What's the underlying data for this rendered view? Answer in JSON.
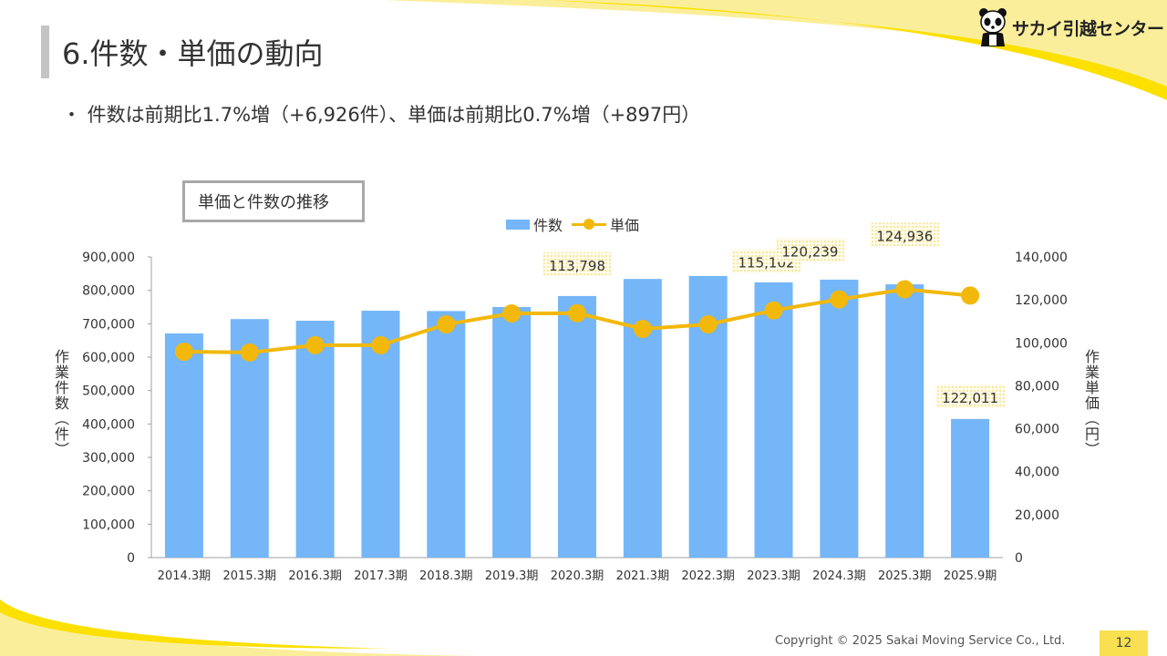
{
  "header": {
    "title": "6.件数・単価の動向",
    "bullet": "・ 件数は前期比1.7%増（+6,926件）、単価は前期比0.7%増（+897円）",
    "logo_text": "サカイ引越センター",
    "logo_icon": "panda-icon"
  },
  "footer": {
    "copyright": "Copyright © 2025 Sakai Moving Service Co., Ltd.",
    "page_number": "12"
  },
  "colors": {
    "bar": "#74b6f8",
    "line": "#f2b80c",
    "accent_yellow": "#f8e050",
    "deco_light_yellow": "#fbee9a",
    "deco_yellow": "#fbe000"
  },
  "chart_data": {
    "type": "bar+line",
    "title": "単価と件数の推移",
    "categories": [
      "2014.3期",
      "2015.3期",
      "2016.3期",
      "2017.3期",
      "2018.3期",
      "2019.3期",
      "2020.3期",
      "2021.3期",
      "2022.3期",
      "2023.3期",
      "2024.3期",
      "2025.3期",
      "2025.9期"
    ],
    "series": [
      {
        "name": "件数",
        "type": "bar",
        "axis": "left",
        "values": [
          671000,
          714000,
          709000,
          739000,
          738000,
          750000,
          783000,
          834000,
          843000,
          824000,
          832000,
          818000,
          415000
        ]
      },
      {
        "name": "単価",
        "type": "line",
        "axis": "right",
        "values": [
          95900,
          95500,
          98900,
          98900,
          108600,
          113700,
          113798,
          106500,
          108600,
          115102,
          120239,
          124936,
          122011
        ],
        "data_labels": [
          null,
          null,
          null,
          null,
          null,
          null,
          "113,798",
          null,
          null,
          "115,102",
          "120,239",
          "124,936",
          "122,011"
        ]
      }
    ],
    "ylabel_left": "作業件数（件）",
    "ylabel_right": "作業単価（円）",
    "ylim_left": [
      0,
      900000
    ],
    "ylim_right": [
      0,
      140000
    ],
    "yticks_left": [
      "0",
      "100,000",
      "200,000",
      "300,000",
      "400,000",
      "500,000",
      "600,000",
      "700,000",
      "800,000",
      "900,000"
    ],
    "yticks_right": [
      "0",
      "20,000",
      "40,000",
      "60,000",
      "80,000",
      "100,000",
      "120,000",
      "140,000"
    ],
    "legend": [
      "件数",
      "単価"
    ],
    "legend_position": "top",
    "grid": false
  }
}
